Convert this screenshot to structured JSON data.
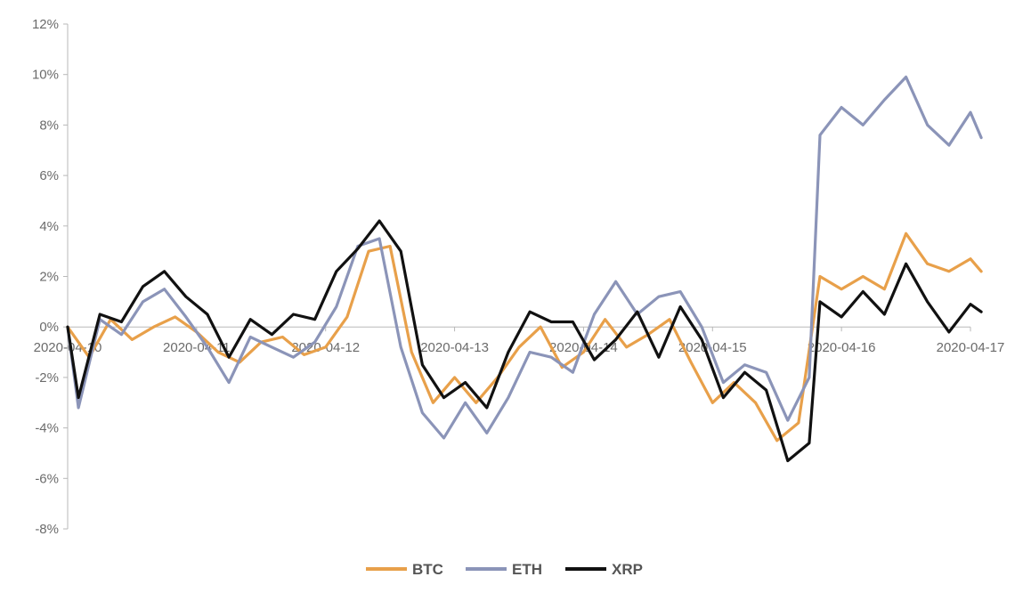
{
  "chart_data": {
    "type": "line",
    "title": "",
    "xlabel": "",
    "ylabel": "",
    "ylim": [
      -0.08,
      0.12
    ],
    "y_tick_values": [
      -0.08,
      -0.06,
      -0.04,
      -0.02,
      0,
      0.02,
      0.04,
      0.06,
      0.08,
      0.1,
      0.12
    ],
    "y_tick_labels": [
      "-8%",
      "-6%",
      "-4%",
      "-2%",
      "0%",
      "2%",
      "4%",
      "6%",
      "8%",
      "10%",
      "12%"
    ],
    "x_range": [
      "2020-04-10",
      "2020-04-17"
    ],
    "x_tick_labels": [
      "2020-04-10",
      "2020-04-11",
      "2020-04-12",
      "2020-04-13",
      "2020-04-14",
      "2020-04-15",
      "2020-04-16",
      "2020-04-17"
    ],
    "grid": false,
    "legend_position": "bottom-center",
    "series": [
      {
        "name": "BTC",
        "color": "#e8a04a",
        "points": [
          [
            "2020-04-10 00:00",
            0.0
          ],
          [
            "2020-04-10 04:00",
            -0.012
          ],
          [
            "2020-04-10 08:00",
            0.003
          ],
          [
            "2020-04-10 12:00",
            -0.005
          ],
          [
            "2020-04-10 16:00",
            0.0
          ],
          [
            "2020-04-10 20:00",
            0.004
          ],
          [
            "2020-04-11 00:00",
            -0.002
          ],
          [
            "2020-04-11 04:00",
            -0.01
          ],
          [
            "2020-04-11 08:00",
            -0.014
          ],
          [
            "2020-04-11 12:00",
            -0.006
          ],
          [
            "2020-04-11 16:00",
            -0.004
          ],
          [
            "2020-04-11 20:00",
            -0.011
          ],
          [
            "2020-04-12 00:00",
            -0.008
          ],
          [
            "2020-04-12 04:00",
            0.004
          ],
          [
            "2020-04-12 08:00",
            0.03
          ],
          [
            "2020-04-12 12:00",
            0.032
          ],
          [
            "2020-04-12 16:00",
            -0.01
          ],
          [
            "2020-04-12 20:00",
            -0.03
          ],
          [
            "2020-04-13 00:00",
            -0.02
          ],
          [
            "2020-04-13 04:00",
            -0.03
          ],
          [
            "2020-04-13 08:00",
            -0.02
          ],
          [
            "2020-04-13 12:00",
            -0.008
          ],
          [
            "2020-04-13 16:00",
            0.0
          ],
          [
            "2020-04-13 20:00",
            -0.016
          ],
          [
            "2020-04-14 00:00",
            -0.01
          ],
          [
            "2020-04-14 04:00",
            0.003
          ],
          [
            "2020-04-14 08:00",
            -0.008
          ],
          [
            "2020-04-14 12:00",
            -0.003
          ],
          [
            "2020-04-14 16:00",
            0.003
          ],
          [
            "2020-04-14 20:00",
            -0.014
          ],
          [
            "2020-04-15 00:00",
            -0.03
          ],
          [
            "2020-04-15 04:00",
            -0.022
          ],
          [
            "2020-04-15 08:00",
            -0.03
          ],
          [
            "2020-04-15 12:00",
            -0.045
          ],
          [
            "2020-04-15 16:00",
            -0.038
          ],
          [
            "2020-04-15 20:00",
            0.02
          ],
          [
            "2020-04-16 00:00",
            0.015
          ],
          [
            "2020-04-16 04:00",
            0.02
          ],
          [
            "2020-04-16 08:00",
            0.015
          ],
          [
            "2020-04-16 12:00",
            0.037
          ],
          [
            "2020-04-16 16:00",
            0.025
          ],
          [
            "2020-04-16 20:00",
            0.022
          ],
          [
            "2020-04-17 00:00",
            0.027
          ],
          [
            "2020-04-17 02:00",
            0.022
          ]
        ]
      },
      {
        "name": "ETH",
        "color": "#8b94b8",
        "points": [
          [
            "2020-04-10 00:00",
            0.0
          ],
          [
            "2020-04-10 02:00",
            -0.032
          ],
          [
            "2020-04-10 06:00",
            0.003
          ],
          [
            "2020-04-10 10:00",
            -0.003
          ],
          [
            "2020-04-10 14:00",
            0.01
          ],
          [
            "2020-04-10 18:00",
            0.015
          ],
          [
            "2020-04-10 22:00",
            0.004
          ],
          [
            "2020-04-11 02:00",
            -0.008
          ],
          [
            "2020-04-11 06:00",
            -0.022
          ],
          [
            "2020-04-11 10:00",
            -0.004
          ],
          [
            "2020-04-11 14:00",
            -0.008
          ],
          [
            "2020-04-11 18:00",
            -0.012
          ],
          [
            "2020-04-11 22:00",
            -0.006
          ],
          [
            "2020-04-12 02:00",
            0.008
          ],
          [
            "2020-04-12 06:00",
            0.032
          ],
          [
            "2020-04-12 10:00",
            0.035
          ],
          [
            "2020-04-12 14:00",
            -0.008
          ],
          [
            "2020-04-12 18:00",
            -0.034
          ],
          [
            "2020-04-12 22:00",
            -0.044
          ],
          [
            "2020-04-13 02:00",
            -0.03
          ],
          [
            "2020-04-13 06:00",
            -0.042
          ],
          [
            "2020-04-13 10:00",
            -0.028
          ],
          [
            "2020-04-13 14:00",
            -0.01
          ],
          [
            "2020-04-13 18:00",
            -0.012
          ],
          [
            "2020-04-13 22:00",
            -0.018
          ],
          [
            "2020-04-14 02:00",
            0.005
          ],
          [
            "2020-04-14 06:00",
            0.018
          ],
          [
            "2020-04-14 10:00",
            0.005
          ],
          [
            "2020-04-14 14:00",
            0.012
          ],
          [
            "2020-04-14 18:00",
            0.014
          ],
          [
            "2020-04-14 22:00",
            0.0
          ],
          [
            "2020-04-15 02:00",
            -0.022
          ],
          [
            "2020-04-15 06:00",
            -0.015
          ],
          [
            "2020-04-15 10:00",
            -0.018
          ],
          [
            "2020-04-15 14:00",
            -0.037
          ],
          [
            "2020-04-15 18:00",
            -0.02
          ],
          [
            "2020-04-15 20:00",
            0.076
          ],
          [
            "2020-04-16 00:00",
            0.087
          ],
          [
            "2020-04-16 04:00",
            0.08
          ],
          [
            "2020-04-16 08:00",
            0.09
          ],
          [
            "2020-04-16 12:00",
            0.099
          ],
          [
            "2020-04-16 16:00",
            0.08
          ],
          [
            "2020-04-16 20:00",
            0.072
          ],
          [
            "2020-04-17 00:00",
            0.085
          ],
          [
            "2020-04-17 02:00",
            0.075
          ]
        ]
      },
      {
        "name": "XRP",
        "color": "#111111",
        "points": [
          [
            "2020-04-10 00:00",
            0.0
          ],
          [
            "2020-04-10 02:00",
            -0.028
          ],
          [
            "2020-04-10 06:00",
            0.005
          ],
          [
            "2020-04-10 10:00",
            0.002
          ],
          [
            "2020-04-10 14:00",
            0.016
          ],
          [
            "2020-04-10 18:00",
            0.022
          ],
          [
            "2020-04-10 22:00",
            0.012
          ],
          [
            "2020-04-11 02:00",
            0.005
          ],
          [
            "2020-04-11 06:00",
            -0.012
          ],
          [
            "2020-04-11 10:00",
            0.003
          ],
          [
            "2020-04-11 14:00",
            -0.003
          ],
          [
            "2020-04-11 18:00",
            0.005
          ],
          [
            "2020-04-11 22:00",
            0.003
          ],
          [
            "2020-04-12 02:00",
            0.022
          ],
          [
            "2020-04-12 06:00",
            0.031
          ],
          [
            "2020-04-12 10:00",
            0.042
          ],
          [
            "2020-04-12 14:00",
            0.03
          ],
          [
            "2020-04-12 18:00",
            -0.015
          ],
          [
            "2020-04-12 22:00",
            -0.028
          ],
          [
            "2020-04-13 02:00",
            -0.022
          ],
          [
            "2020-04-13 06:00",
            -0.032
          ],
          [
            "2020-04-13 10:00",
            -0.01
          ],
          [
            "2020-04-13 14:00",
            0.006
          ],
          [
            "2020-04-13 18:00",
            0.002
          ],
          [
            "2020-04-13 22:00",
            0.002
          ],
          [
            "2020-04-14 02:00",
            -0.013
          ],
          [
            "2020-04-14 06:00",
            -0.005
          ],
          [
            "2020-04-14 10:00",
            0.006
          ],
          [
            "2020-04-14 14:00",
            -0.012
          ],
          [
            "2020-04-14 18:00",
            0.008
          ],
          [
            "2020-04-14 22:00",
            -0.005
          ],
          [
            "2020-04-15 02:00",
            -0.028
          ],
          [
            "2020-04-15 06:00",
            -0.018
          ],
          [
            "2020-04-15 10:00",
            -0.025
          ],
          [
            "2020-04-15 14:00",
            -0.053
          ],
          [
            "2020-04-15 18:00",
            -0.046
          ],
          [
            "2020-04-15 20:00",
            0.01
          ],
          [
            "2020-04-16 00:00",
            0.004
          ],
          [
            "2020-04-16 04:00",
            0.014
          ],
          [
            "2020-04-16 08:00",
            0.005
          ],
          [
            "2020-04-16 12:00",
            0.025
          ],
          [
            "2020-04-16 16:00",
            0.01
          ],
          [
            "2020-04-16 20:00",
            -0.002
          ],
          [
            "2020-04-17 00:00",
            0.009
          ],
          [
            "2020-04-17 02:00",
            0.006
          ]
        ]
      }
    ]
  }
}
